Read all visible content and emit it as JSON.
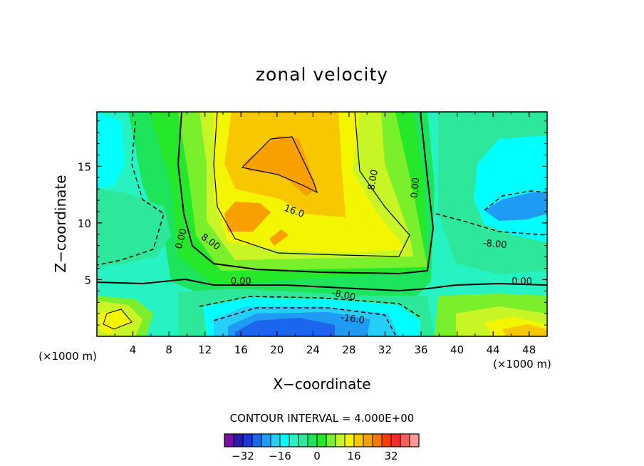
{
  "chart_data": {
    "type": "contour",
    "title": "zonal velocity",
    "xlabel": "X−coordinate",
    "ylabel": "Z−coordinate",
    "x_unit_label": "(×1000 m)",
    "y_unit_label": "(×1000 m)",
    "xlim": [
      0,
      50
    ],
    "ylim": [
      0,
      19.8
    ],
    "x_ticks": [
      4,
      8,
      12,
      16,
      20,
      24,
      28,
      32,
      36,
      40,
      44,
      48
    ],
    "y_ticks": [
      5,
      10,
      15
    ],
    "contour_interval_text": "CONTOUR INTERVAL = 4.000E+00",
    "contour_labels": [
      {
        "text": "16.0",
        "x": 21.9,
        "y": 11.0,
        "angle": 20
      },
      {
        "text": "8.00",
        "x": 30.7,
        "y": 13.8,
        "angle": -80
      },
      {
        "text": "0.00",
        "x": 35.4,
        "y": 13.1,
        "angle": -85
      },
      {
        "text": "0.00",
        "x": 9.4,
        "y": 8.6,
        "angle": -75
      },
      {
        "text": "8.00",
        "x": 12.6,
        "y": 8.3,
        "angle": 35
      },
      {
        "text": "-8.00",
        "x": 44.2,
        "y": 8.1,
        "angle": 5
      },
      {
        "text": "0.00",
        "x": 16.0,
        "y": 4.8,
        "angle": 0
      },
      {
        "text": "0.00",
        "x": 47.2,
        "y": 4.8,
        "angle": 0
      },
      {
        "text": "-8.00",
        "x": 27.4,
        "y": 3.6,
        "angle": 12
      },
      {
        "text": "-16.0",
        "x": 28.4,
        "y": 1.5,
        "angle": 8
      }
    ],
    "colorbar": {
      "colors": [
        "#7a0ea6",
        "#2a1aa8",
        "#1f35d8",
        "#1c66ee",
        "#1e9bf2",
        "#25cff7",
        "#00ffff",
        "#27f3c2",
        "#2de89a",
        "#1ee45c",
        "#26e82a",
        "#7af02c",
        "#c8f526",
        "#f4f500",
        "#f7c800",
        "#f7a000",
        "#f77a00",
        "#ff4000",
        "#f72d2d",
        "#f75f5f",
        "#f79a9a"
      ],
      "tick_labels": [
        "−32",
        "−16",
        "0",
        "16",
        "32"
      ],
      "tick_values": [
        -32,
        -16,
        0,
        16,
        32
      ],
      "min": -40,
      "max": 44
    }
  }
}
